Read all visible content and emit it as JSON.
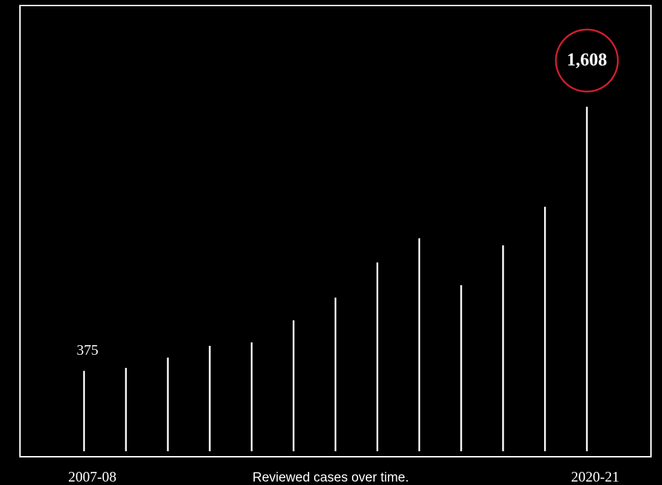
{
  "chart_data": {
    "type": "bar",
    "caption": "Reviewed cases over time.",
    "categories": [
      "2007-08",
      null,
      null,
      null,
      null,
      null,
      null,
      null,
      null,
      null,
      null,
      null,
      "2020-21"
    ],
    "values": [
      375,
      389,
      437,
      492,
      508,
      611,
      717,
      881,
      994,
      775,
      961,
      1141,
      1608
    ],
    "value_labels": [
      "375",
      null,
      null,
      null,
      null,
      null,
      null,
      null,
      null,
      null,
      null,
      null,
      "1,608"
    ],
    "color": "#ffffff",
    "highlight_color": "#d21f2e",
    "ylim": [
      0,
      2000
    ]
  }
}
